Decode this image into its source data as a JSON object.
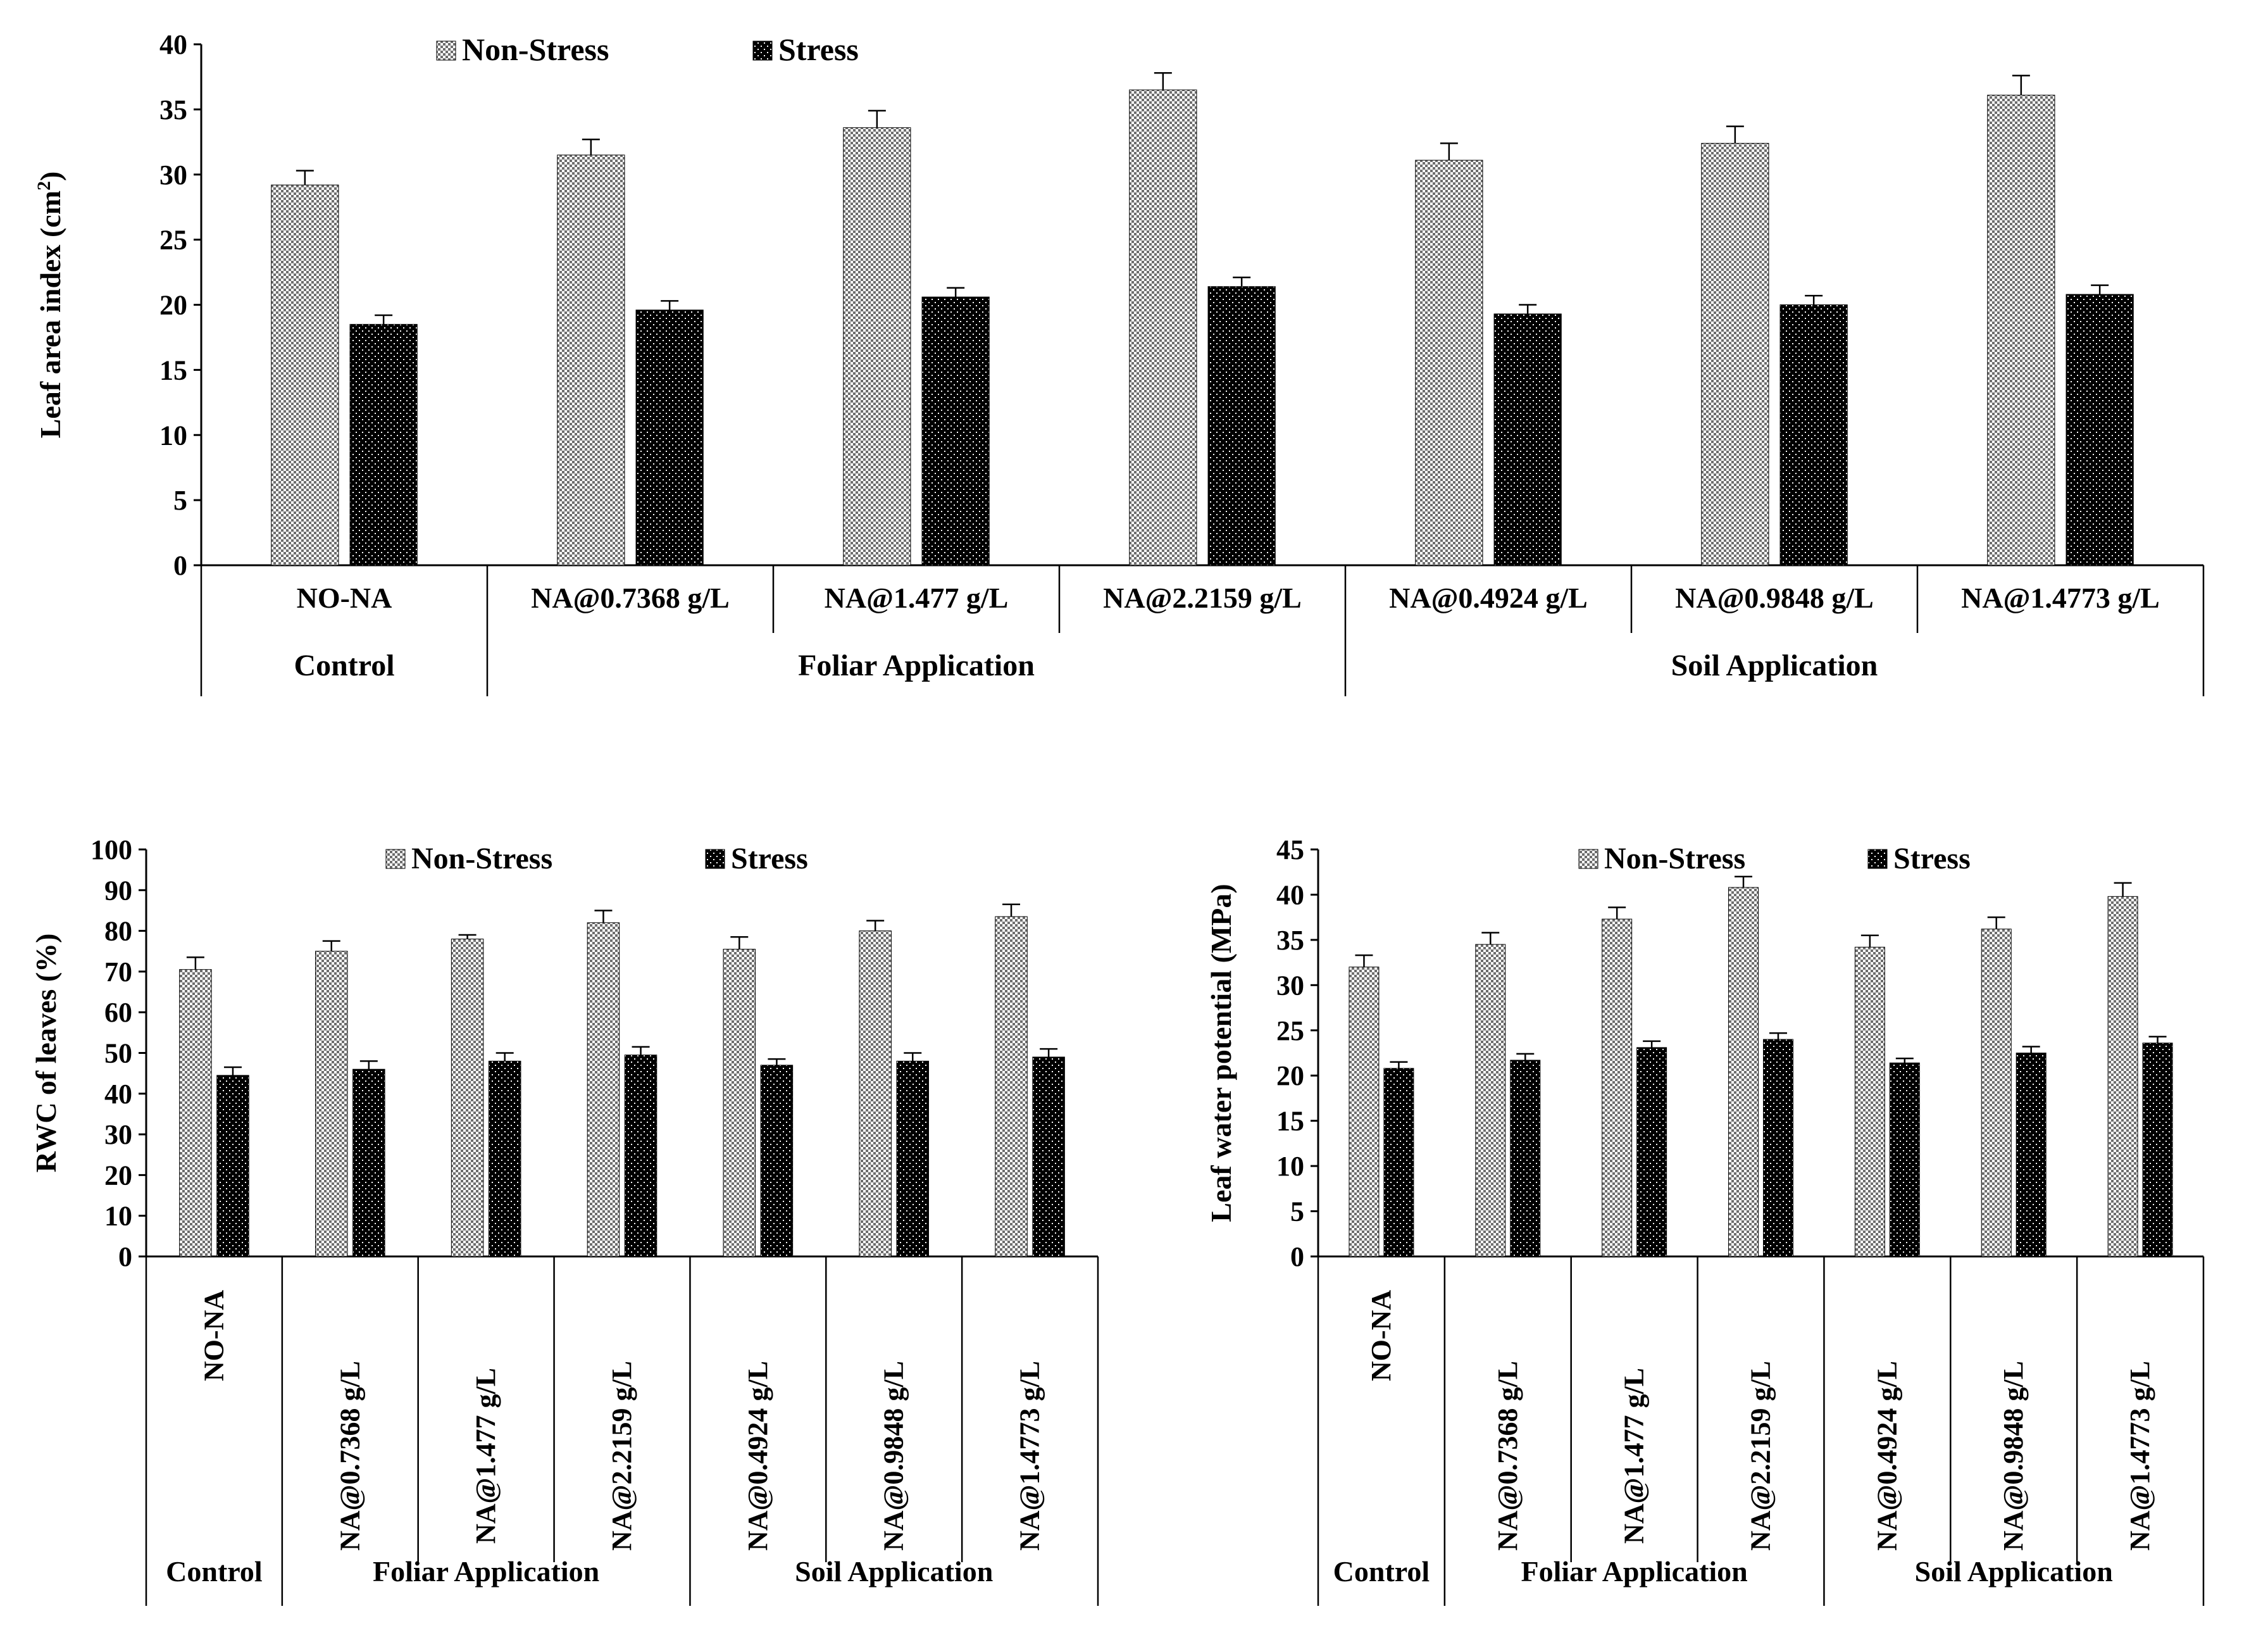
{
  "chart_data": [
    {
      "type": "bar",
      "title": "",
      "ylabel": "Leaf area index (cm",
      "ylabel_sup": "2",
      "ylabel_tail": ")",
      "xlabel": "",
      "ylim": [
        0,
        40
      ],
      "yticks": [
        0,
        5,
        10,
        15,
        20,
        25,
        30,
        35,
        40
      ],
      "legend_position": "top-center",
      "categories": [
        "NO-NA",
        "NA@0.7368 g/L",
        "NA@1.477 g/L",
        "NA@2.2159 g/L",
        "NA@0.4924 g/L",
        "NA@0.9848 g/L",
        "NA@1.4773 g/L"
      ],
      "groups": [
        {
          "label": "Control",
          "span": 1
        },
        {
          "label": "Foliar Application",
          "span": 3
        },
        {
          "label": "Soil Application",
          "span": 3
        }
      ],
      "series": [
        {
          "name": "Non-Stress",
          "values": [
            29.2,
            31.5,
            33.6,
            36.5,
            31.1,
            32.4,
            36.1
          ],
          "errors": [
            1.1,
            1.2,
            1.3,
            1.3,
            1.3,
            1.3,
            1.5
          ]
        },
        {
          "name": "Stress",
          "values": [
            18.5,
            19.6,
            20.6,
            21.4,
            19.3,
            20.0,
            20.8
          ],
          "errors": [
            0.7,
            0.7,
            0.7,
            0.7,
            0.7,
            0.7,
            0.7
          ]
        }
      ]
    },
    {
      "type": "bar",
      "title": "",
      "ylabel": "RWC of leaves (%)",
      "xlabel": "",
      "ylim": [
        0,
        100
      ],
      "yticks": [
        0,
        10,
        20,
        30,
        40,
        50,
        60,
        70,
        80,
        90,
        100
      ],
      "legend_position": "top-center",
      "categories": [
        "NO-NA",
        "NA@0.7368 g/L",
        "NA@1.477 g/L",
        "NA@2.2159 g/L",
        "NA@0.4924 g/L",
        "NA@0.9848 g/L",
        "NA@1.4773 g/L"
      ],
      "groups": [
        {
          "label": "Control",
          "span": 1
        },
        {
          "label": "Foliar Application",
          "span": 3
        },
        {
          "label": "Soil Application",
          "span": 3
        }
      ],
      "series": [
        {
          "name": "Non-Stress",
          "values": [
            70.5,
            75,
            78,
            82,
            75.5,
            80,
            83.5
          ],
          "errors": [
            3,
            2.5,
            1,
            3,
            3,
            2.5,
            3
          ]
        },
        {
          "name": "Stress",
          "values": [
            44.5,
            46,
            48,
            49.5,
            47,
            48,
            49
          ],
          "errors": [
            2,
            2,
            2,
            2,
            1.5,
            2,
            2
          ]
        }
      ]
    },
    {
      "type": "bar",
      "title": "",
      "ylabel": "Leaf  water potential (MPa)",
      "xlabel": "",
      "ylim": [
        0,
        45
      ],
      "yticks": [
        0,
        5,
        10,
        15,
        20,
        25,
        30,
        35,
        40,
        45
      ],
      "legend_position": "top-center",
      "categories": [
        "NO-NA",
        "NA@0.7368 g/L",
        "NA@1.477 g/L",
        "NA@2.2159 g/L",
        "NA@0.4924 g/L",
        "NA@0.9848 g/L",
        "NA@1.4773 g/L"
      ],
      "groups": [
        {
          "label": "Control",
          "span": 1
        },
        {
          "label": "Foliar Application",
          "span": 3
        },
        {
          "label": "Soil Application",
          "span": 3
        }
      ],
      "series": [
        {
          "name": "Non-Stress",
          "values": [
            32,
            34.5,
            37.3,
            40.8,
            34.2,
            36.2,
            39.8
          ],
          "errors": [
            1.3,
            1.3,
            1.3,
            1.2,
            1.3,
            1.3,
            1.5
          ]
        },
        {
          "name": "Stress",
          "values": [
            20.8,
            21.7,
            23.1,
            24,
            21.4,
            22.5,
            23.6
          ],
          "errors": [
            0.7,
            0.7,
            0.7,
            0.7,
            0.5,
            0.7,
            0.7
          ]
        }
      ]
    }
  ]
}
